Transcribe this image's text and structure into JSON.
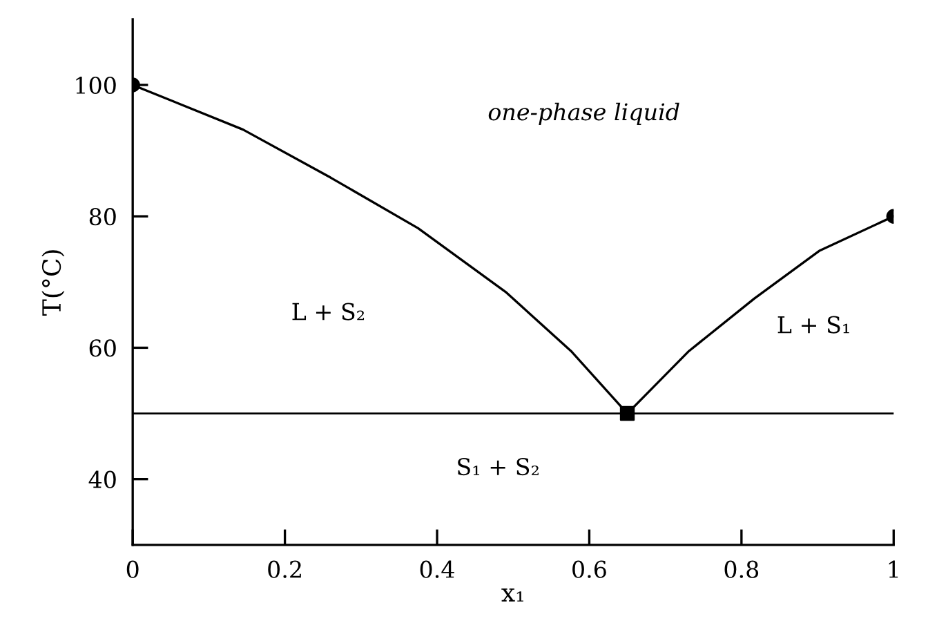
{
  "chart_data": {
    "type": "line",
    "xlabel": "x₁",
    "ylabel": "T(°C)",
    "xlim": [
      0,
      1
    ],
    "ylim": [
      30,
      110
    ],
    "xticks": [
      0,
      0.2,
      0.4,
      0.6,
      0.8,
      1
    ],
    "yticks": [
      40,
      60,
      80,
      100
    ],
    "grid": false,
    "legend": false,
    "line_style": "solid",
    "series": [
      {
        "color": "#000000",
        "marker": "none",
        "x": [
          0,
          0.145,
          0.26,
          0.375,
          0.49,
          0.576,
          0.65
        ],
        "values": [
          100,
          93.2,
          85.9,
          78.2,
          68.5,
          59.5,
          50
        ]
      },
      {
        "color": "#000000",
        "marker": "none",
        "x": [
          0.65,
          0.731,
          0.817,
          0.903,
          1
        ],
        "values": [
          50,
          59.5,
          67.5,
          74.8,
          80
        ]
      },
      {
        "type": "scatter",
        "color": "#000000",
        "marker": "circle",
        "x": [
          0,
          1
        ],
        "values": [
          100,
          80
        ]
      },
      {
        "type": "scatter",
        "color": "#000000",
        "marker": "square",
        "x": [
          0.65
        ],
        "values": [
          50
        ]
      }
    ],
    "ref_lines": [
      {
        "axis": "y",
        "value": 50,
        "color": "#000000",
        "line_style": "solid"
      }
    ],
    "annotations": [
      "one-phase liquid",
      "L + S₂",
      "L + S₁",
      "S₁ + S₂"
    ]
  }
}
